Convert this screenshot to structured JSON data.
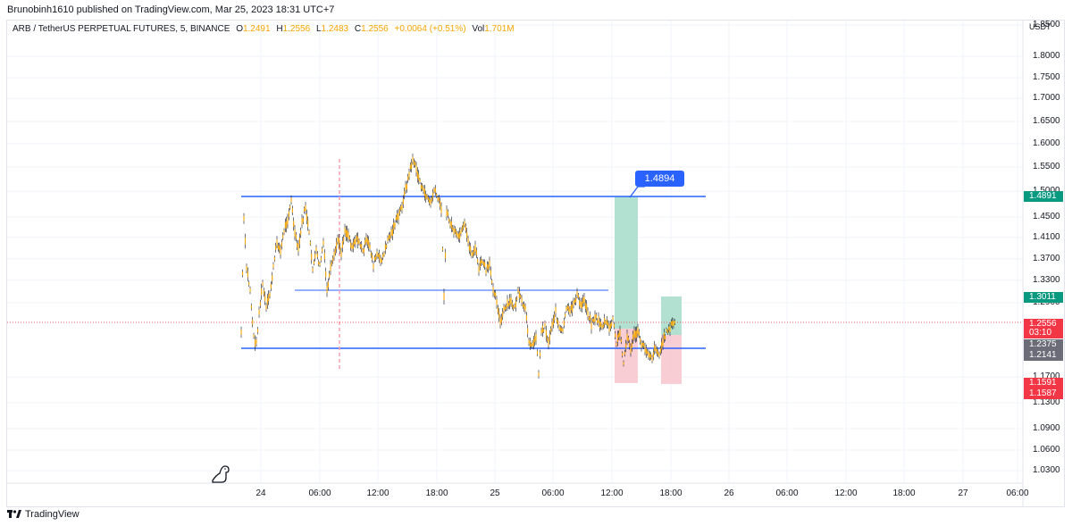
{
  "header": {
    "published_text": "Brunobinh1610 published on TradingView.com, Mar 25, 2023 18:31 UTC+7"
  },
  "legend": {
    "symbol": "ARB / TetherUS PERPETUAL FUTURES, 5, BINANCE",
    "o_label": "O",
    "o_value": "1.2491",
    "h_label": "H",
    "h_value": "1.2556",
    "l_label": "L",
    "l_value": "1.2483",
    "c_label": "C",
    "c_value": "1.2556",
    "change": "+0.0064 (+0.51%)",
    "vol_label": "Vol",
    "vol_value": "1.701M"
  },
  "price_axis": {
    "currency": "USDT",
    "ticks": [
      "1.8500",
      "1.8000",
      "1.7500",
      "1.7000",
      "1.6500",
      "1.6000",
      "1.5500",
      "1.5000",
      "1.4500",
      "1.4100",
      "1.3700",
      "1.3300",
      "1.2900",
      "1.1700",
      "1.1300",
      "1.0900",
      "1.0600",
      "1.0300"
    ],
    "badges": [
      {
        "text": "1.4891",
        "color": "#089981"
      },
      {
        "text": "1.3011",
        "color": "#089981"
      },
      {
        "text": "1.2556",
        "color": "#f23645"
      },
      {
        "text": "03:10",
        "color": "#f23645"
      },
      {
        "text": "1.2375",
        "color": "#6a6d78"
      },
      {
        "text": "1.2141",
        "color": "#6a6d78"
      },
      {
        "text": "1.1591",
        "color": "#f23645"
      },
      {
        "text": "1.1587",
        "color": "#f23645"
      }
    ]
  },
  "time_axis": {
    "ticks": [
      "24",
      "06:00",
      "12:00",
      "18:00",
      "25",
      "06:00",
      "12:00",
      "18:00",
      "26",
      "06:00",
      "12:00",
      "18:00",
      "27",
      "06:00"
    ]
  },
  "annotation": {
    "target_label": "1.4894"
  },
  "footer": {
    "brand": "TradingView"
  },
  "colors": {
    "level_line": "#2962ff",
    "candle": "#f7a600",
    "wick": "#131722",
    "profit_zone": "#a6dcc9",
    "loss_zone": "#f8c4cc",
    "current_price_line": "#f23645",
    "vertical_marker": "#f7a1ad"
  }
}
